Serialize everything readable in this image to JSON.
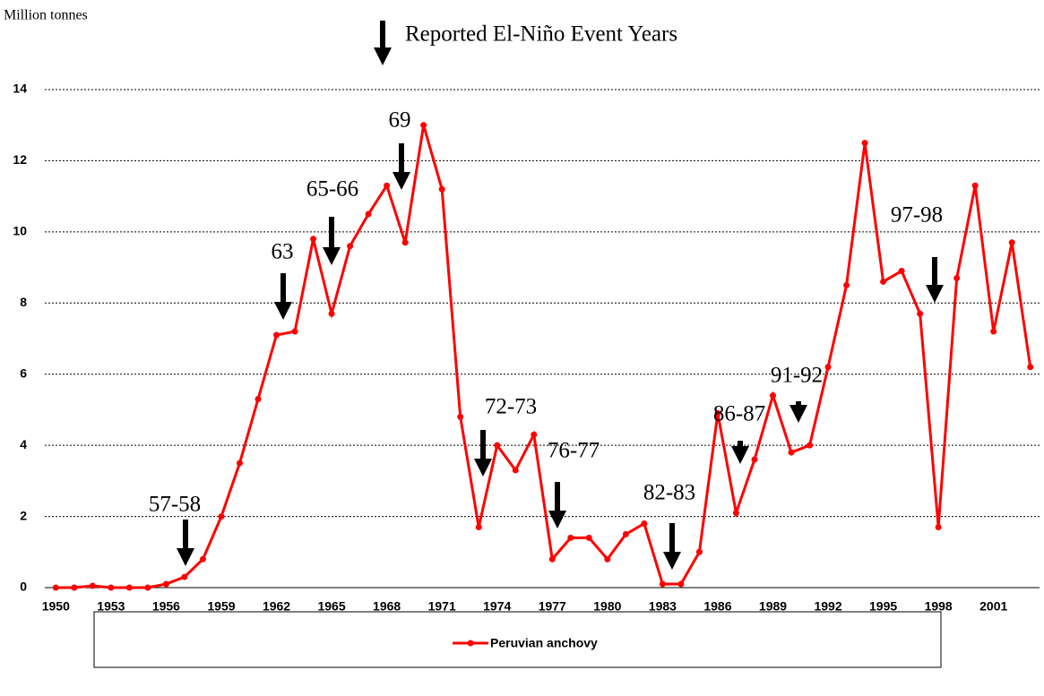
{
  "chart_data": {
    "type": "line",
    "title": "Reported El-Niño Event Years",
    "y_label": "Million tonnes",
    "x": [
      1950,
      1951,
      1952,
      1953,
      1954,
      1955,
      1956,
      1957,
      1958,
      1959,
      1960,
      1961,
      1962,
      1963,
      1964,
      1965,
      1966,
      1967,
      1968,
      1969,
      1970,
      1971,
      1972,
      1973,
      1974,
      1975,
      1976,
      1977,
      1978,
      1979,
      1980,
      1981,
      1982,
      1983,
      1984,
      1985,
      1986,
      1987,
      1988,
      1989,
      1990,
      1991,
      1992,
      1993,
      1994,
      1995,
      1996,
      1997,
      1998,
      1999,
      2000,
      2001,
      2002,
      2003
    ],
    "series": [
      {
        "name": "Peruvian anchovy",
        "color": "#ff0000",
        "values": [
          0,
          0,
          0.05,
          0,
          0,
          0,
          0.1,
          0.3,
          0.8,
          2,
          3.5,
          5.3,
          7.1,
          7.2,
          9.8,
          7.7,
          9.6,
          10.5,
          11.3,
          9.7,
          13.0,
          11.2,
          4.8,
          1.7,
          4.0,
          3.3,
          4.3,
          0.8,
          1.4,
          1.4,
          0.8,
          1.5,
          1.8,
          0.1,
          0.1,
          1.0,
          4.9,
          2.1,
          3.6,
          5.4,
          3.8,
          4.0,
          6.2,
          8.5,
          12.5,
          8.6,
          8.9,
          7.7,
          1.7,
          8.7,
          11.3,
          7.2,
          9.7,
          6.2
        ]
      }
    ],
    "xlim": [
      1949.4,
      2003.5
    ],
    "xticks": [
      1950,
      1953,
      1956,
      1959,
      1962,
      1965,
      1968,
      1971,
      1974,
      1977,
      1980,
      1983,
      1986,
      1989,
      1992,
      1995,
      1998,
      2001
    ],
    "ylim": [
      0,
      14
    ],
    "yticks": [
      0,
      2,
      4,
      6,
      8,
      10,
      12,
      14
    ],
    "grid": true,
    "legend": "bottom",
    "annotations": [
      "57-58",
      "63",
      "65-66",
      "69",
      "72-73",
      "76-77",
      "82-83",
      "86-87",
      "91-92",
      "97-98"
    ]
  }
}
